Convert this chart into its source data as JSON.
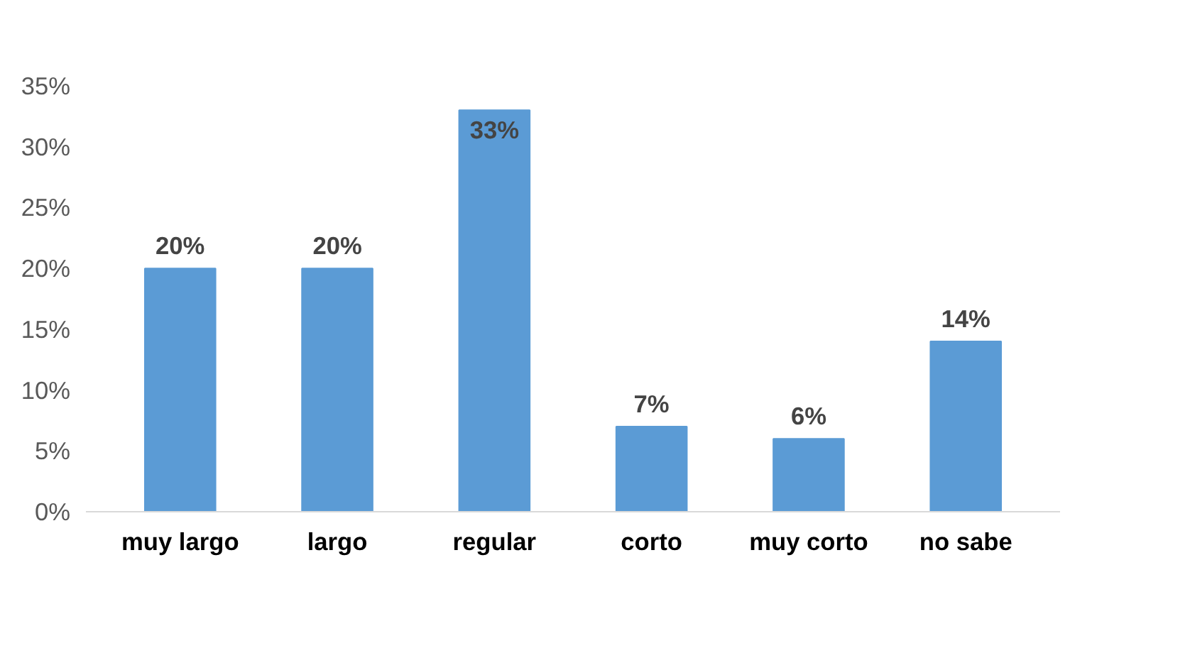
{
  "chart_data": {
    "type": "bar",
    "categories": [
      "muy largo",
      "largo",
      "regular",
      "corto",
      "muy corto",
      "no sabe"
    ],
    "values": [
      20,
      20,
      33,
      7,
      6,
      14
    ],
    "value_labels": [
      "20%",
      "20%",
      "33%",
      "7%",
      "6%",
      "14%"
    ],
    "color": "#5b9bd5",
    "ylim": [
      0,
      35
    ],
    "yticks": [
      {
        "value": 0,
        "label": "0%"
      },
      {
        "value": 5,
        "label": "5%"
      },
      {
        "value": 10,
        "label": "10%"
      },
      {
        "value": 15,
        "label": "15%"
      },
      {
        "value": 20,
        "label": "20%"
      },
      {
        "value": 25,
        "label": "25%"
      },
      {
        "value": 30,
        "label": "30%"
      },
      {
        "value": 35,
        "label": "35%"
      }
    ],
    "grid": false
  }
}
